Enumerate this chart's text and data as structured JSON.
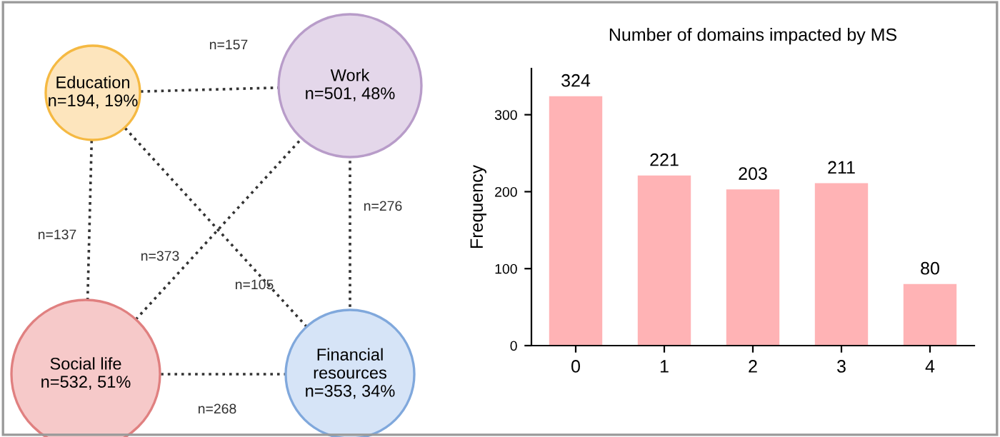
{
  "chart_data": [
    {
      "type": "other",
      "categories": [
        "Education",
        "Work",
        "Social life",
        "Financial resources"
      ],
      "value_labels": [
        "n=194, 19%",
        "n=501, 48%",
        "n=532, 51%",
        "n=353, 34%"
      ],
      "colors": [
        "#fde5bd",
        "#e4d7ea",
        "#f6c9c9",
        "#d6e4f7"
      ],
      "annotations": [
        "n=157",
        "n=137",
        "n=373",
        "n=105",
        "n=276",
        "n=268"
      ]
    },
    {
      "type": "bar",
      "title": "Number of domains impacted by MS",
      "ylabel": "Frequency",
      "categories": [
        "0",
        "1",
        "2",
        "3",
        "4"
      ],
      "values": [
        324,
        221,
        203,
        211,
        80
      ],
      "color": "#ffb3b5",
      "data_labels": true,
      "ylim": [
        0,
        360
      ],
      "yticks": [
        0,
        100,
        200,
        300
      ],
      "grid": false
    }
  ]
}
